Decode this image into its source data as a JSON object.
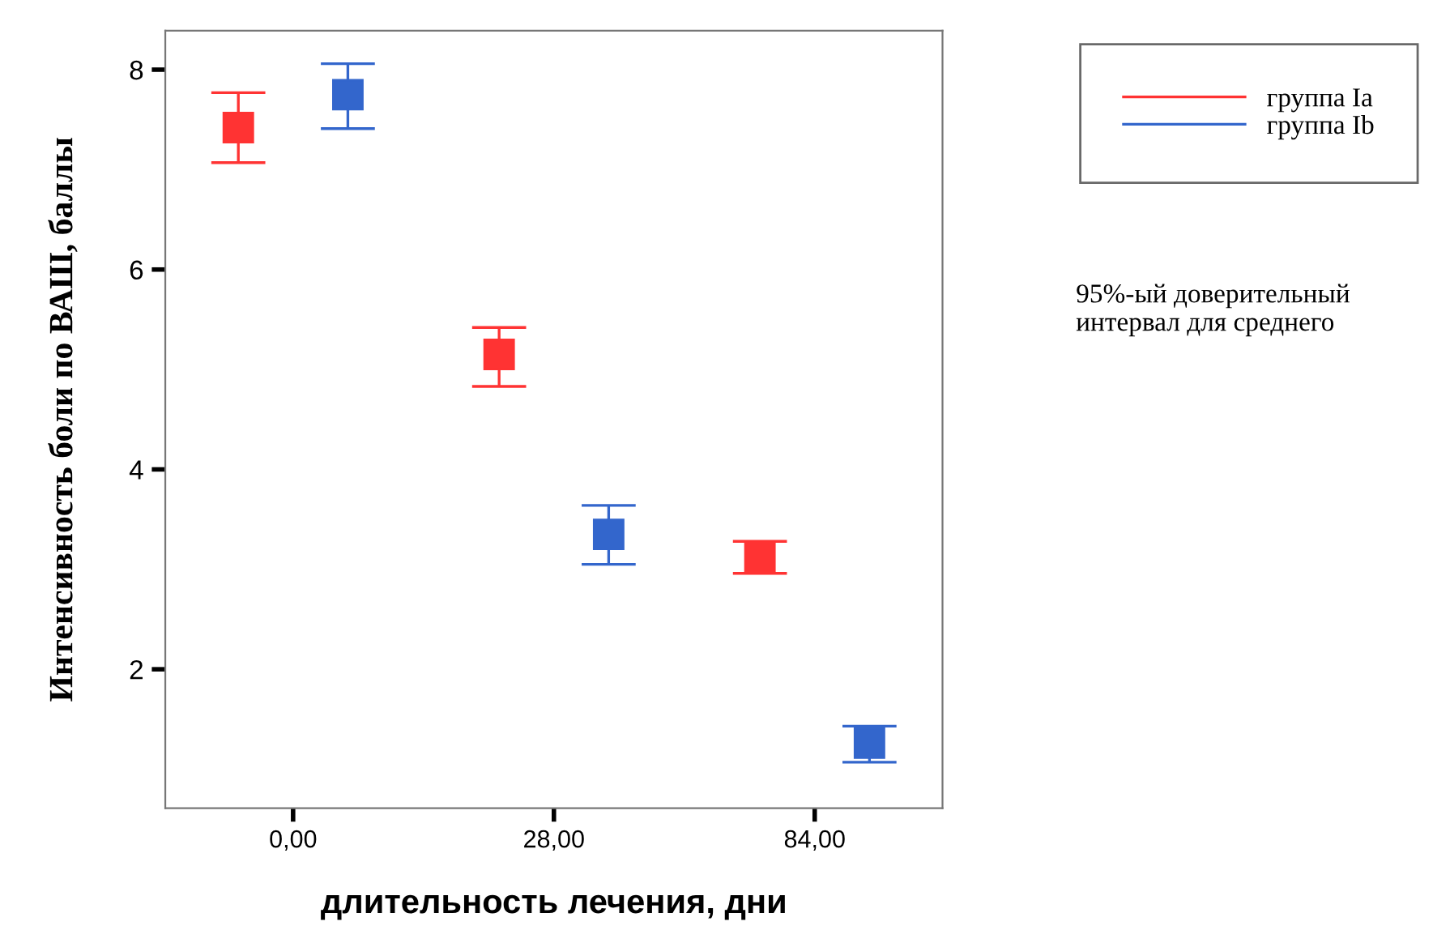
{
  "chart_data": {
    "type": "scatter",
    "xlabel": "длительность лечения, дни",
    "ylabel": "Интенсивность боли по ВАШ, баллы",
    "categories": [
      "0,00",
      "28,00",
      "84,00"
    ],
    "series": [
      {
        "name": "группа Ia",
        "color": "#ff3333",
        "values": [
          7.42,
          5.15,
          3.12
        ],
        "errors": [
          [
            7.07,
            7.77
          ],
          [
            4.83,
            5.42
          ],
          [
            2.96,
            3.28
          ]
        ]
      },
      {
        "name": "группа Ib",
        "color": "#3366cc",
        "values": [
          7.75,
          3.35,
          1.26
        ],
        "errors": [
          [
            7.41,
            8.06
          ],
          [
            3.05,
            3.64
          ],
          [
            1.07,
            1.43
          ]
        ]
      }
    ],
    "ylim": [
      0.61,
      8.39
    ],
    "yticks": [
      2,
      4,
      6,
      8
    ],
    "grid": false,
    "legend": "top right",
    "marker": "square",
    "annotations": [
      "95%-ый доверительный интервал для среднего"
    ]
  }
}
